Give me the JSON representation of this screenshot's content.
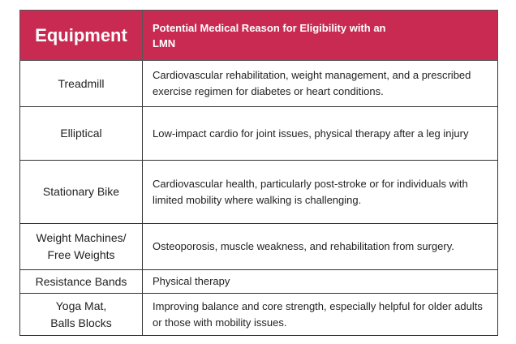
{
  "header": {
    "equipment": "Equipment",
    "reason": "Potential Medical Reason for Eligibility with an LMN"
  },
  "rows": [
    {
      "equipment": [
        "Treadmill"
      ],
      "reason": "Cardiovascular rehabilitation, weight management, and a prescribed exercise regimen for diabetes or heart conditions."
    },
    {
      "equipment": [
        "Elliptical"
      ],
      "reason": "Low-impact cardio for joint issues, physical therapy after a leg injury"
    },
    {
      "equipment": [
        "Stationary Bike"
      ],
      "reason": "Cardiovascular health, particularly post-stroke or for individuals with limited mobility where walking is challenging."
    },
    {
      "equipment": [
        "Weight Machines/",
        "Free Weights"
      ],
      "reason": "Osteoporosis, muscle weakness, and rehabilitation from surgery."
    },
    {
      "equipment": [
        "Resistance Bands"
      ],
      "reason": "Physical therapy"
    },
    {
      "equipment": [
        "Yoga Mat,",
        "Balls Blocks"
      ],
      "reason": "Improving balance and core strength, especially helpful for older adults or those with mobility issues."
    }
  ]
}
